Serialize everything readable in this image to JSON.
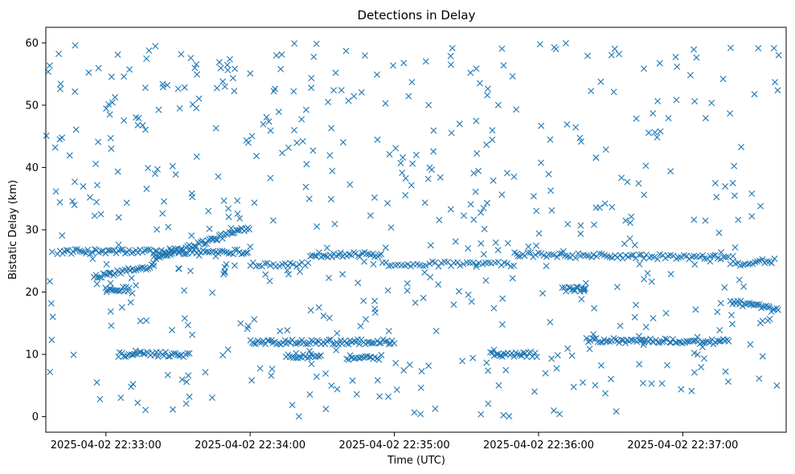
{
  "chart_data": {
    "type": "scatter",
    "title": "Detections in Delay",
    "xlabel": "Time (UTC)",
    "ylabel": "Bistatic Delay (km)",
    "marker": "x",
    "color": "#1f77b4",
    "grid": false,
    "xlim": [
      "2025-04-02 22:32:35",
      "2025-04-02 22:37:43"
    ],
    "ylim": [
      -2.5,
      62.5
    ],
    "x_ticks": [
      "2025-04-02 22:33:00",
      "2025-04-02 22:34:00",
      "2025-04-02 22:35:00",
      "2025-04-02 22:36:00",
      "2025-04-02 22:37:00"
    ],
    "y_ticks": [
      0,
      10,
      20,
      30,
      40,
      50,
      60
    ],
    "x_range_seconds": [
      -25,
      283
    ],
    "time_origin": "2025-04-02 22:33:00",
    "time_span_seconds": 280,
    "tracks": [
      {
        "from": [
          -20,
          26.5
        ],
        "to": [
          60,
          26.5
        ],
        "step": 0.9
      },
      {
        "from": [
          -5,
          22.5
        ],
        "to": [
          15,
          23.8
        ],
        "step": 0.8
      },
      {
        "from": [
          15,
          23.8
        ],
        "to": [
          20,
          24.5
        ],
        "step": 0.8
      },
      {
        "from": [
          20,
          25.5
        ],
        "to": [
          45,
          28.5
        ],
        "step": 0.7
      },
      {
        "from": [
          45,
          28.5
        ],
        "to": [
          60,
          30.5
        ],
        "step": 0.7
      },
      {
        "from": [
          60,
          24.5
        ],
        "to": [
          85,
          24.5
        ],
        "step": 1.2
      },
      {
        "from": [
          85,
          26
        ],
        "to": [
          115,
          26
        ],
        "step": 0.9
      },
      {
        "from": [
          115,
          24.5
        ],
        "to": [
          170,
          24.5
        ],
        "step": 1.3
      },
      {
        "from": [
          170,
          26
        ],
        "to": [
          260,
          25.5
        ],
        "step": 1.1
      },
      {
        "from": [
          260,
          24.5
        ],
        "to": [
          278,
          25
        ],
        "step": 1.0
      },
      {
        "from": [
          260,
          18.5
        ],
        "to": [
          280,
          17
        ],
        "step": 0.7
      },
      {
        "from": [
          0,
          20.5
        ],
        "to": [
          10,
          20.5
        ],
        "step": 0.7
      },
      {
        "from": [
          5,
          10
        ],
        "to": [
          35,
          10
        ],
        "step": 0.8
      },
      {
        "from": [
          60,
          12
        ],
        "to": [
          120,
          12
        ],
        "step": 0.8
      },
      {
        "from": [
          75,
          9.8
        ],
        "to": [
          90,
          9.8
        ],
        "step": 0.8
      },
      {
        "from": [
          100,
          9.5
        ],
        "to": [
          115,
          9.5
        ],
        "step": 0.8
      },
      {
        "from": [
          160,
          10
        ],
        "to": [
          180,
          10
        ],
        "step": 0.8
      },
      {
        "from": [
          190,
          20.5
        ],
        "to": [
          200,
          20.5
        ],
        "step": 0.8
      },
      {
        "from": [
          200,
          12.3
        ],
        "to": [
          260,
          12.0
        ],
        "step": 0.8
      }
    ],
    "scatter_ranges": {
      "x": [
        -25,
        280
      ],
      "y": [
        0,
        60
      ],
      "count": 560
    }
  }
}
